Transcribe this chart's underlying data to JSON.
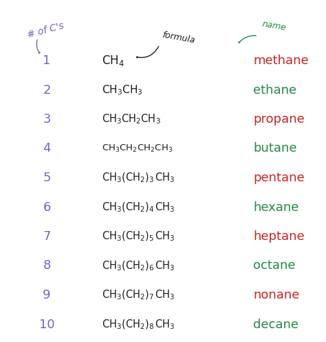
{
  "background_color": "#ffffff",
  "number_color": "#7b5cc8",
  "formula_color": "#1a1a1a",
  "name_colors": [
    "#cc2222",
    "#228844",
    "#cc2222",
    "#228844",
    "#cc2222",
    "#228844",
    "#cc2222",
    "#228844",
    "#cc2222",
    "#228844"
  ],
  "header_num_color": "#7b5cc8",
  "header_formula_color": "#1a1a1a",
  "header_name_color": "#228844",
  "numbers": [
    "1",
    "2",
    "3",
    "4",
    "5",
    "6",
    "7",
    "8",
    "9",
    "10"
  ],
  "names": [
    "methane",
    "ethane",
    "propane",
    "butane",
    "pentane",
    "hexane",
    "heptane",
    "octane",
    "nonane",
    "decane"
  ],
  "figsize": [
    4.74,
    4.96
  ],
  "dpi": 100
}
